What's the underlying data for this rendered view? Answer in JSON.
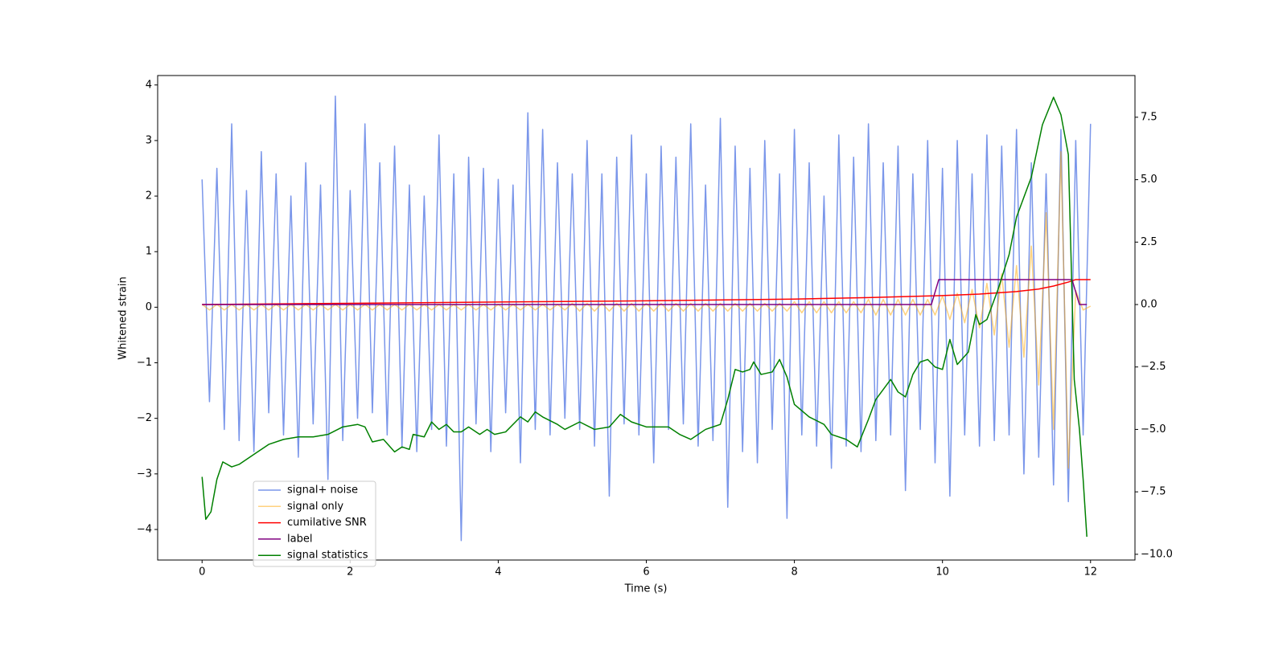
{
  "chart_data": {
    "type": "line",
    "xlabel": "Time (s)",
    "ylabel": "Whitened strain",
    "xlim": [
      -0.6,
      12.6
    ],
    "ylim": [
      -4.55,
      4.17
    ],
    "y2lim": [
      -10.23,
      9.17
    ],
    "xticks": [
      0,
      2,
      4,
      6,
      8,
      10,
      12
    ],
    "yticks": [
      {
        "value": -4,
        "label": "−4"
      },
      {
        "value": -3,
        "label": "−3"
      },
      {
        "value": -2,
        "label": "−2"
      },
      {
        "value": -1,
        "label": "−1"
      },
      0,
      1,
      2,
      3,
      4
    ],
    "y2ticks": [
      {
        "value": -10,
        "label": "−10.0"
      },
      {
        "value": -7.5,
        "label": "−7.5"
      },
      {
        "value": -5,
        "label": "−5.0"
      },
      {
        "value": -2.5,
        "label": "−2.5"
      },
      {
        "value": 0,
        "label": "0.0"
      },
      {
        "value": 2.5,
        "label": "2.5"
      },
      {
        "value": 5,
        "label": "5.0"
      },
      {
        "value": 7.5,
        "label": "7.5"
      }
    ],
    "x": [
      0,
      0.1,
      0.2,
      0.3,
      0.4,
      0.5,
      0.6,
      0.7,
      0.8,
      0.9,
      1,
      1.1,
      1.2,
      1.3,
      1.4,
      1.5,
      1.6,
      1.7,
      1.8,
      1.9,
      2,
      2.1,
      2.2,
      2.3,
      2.4,
      2.5,
      2.6,
      2.7,
      2.8,
      2.9,
      3,
      3.1,
      3.2,
      3.3,
      3.4,
      3.5,
      3.6,
      3.7,
      3.8,
      3.9,
      4,
      4.1,
      4.2,
      4.3,
      4.4,
      4.5,
      4.6,
      4.7,
      4.8,
      4.9,
      5,
      5.1,
      5.2,
      5.3,
      5.4,
      5.5,
      5.6,
      5.7,
      5.8,
      5.9,
      6,
      6.1,
      6.2,
      6.3,
      6.4,
      6.5,
      6.6,
      6.7,
      6.8,
      6.9,
      7,
      7.1,
      7.2,
      7.3,
      7.4,
      7.5,
      7.6,
      7.7,
      7.8,
      7.9,
      8,
      8.1,
      8.2,
      8.3,
      8.4,
      8.5,
      8.6,
      8.7,
      8.8,
      8.9,
      9,
      9.1,
      9.2,
      9.3,
      9.4,
      9.5,
      9.6,
      9.7,
      9.8,
      9.9,
      10,
      10.1,
      10.2,
      10.3,
      10.4,
      10.5,
      10.6,
      10.7,
      10.8,
      10.9,
      11,
      11.1,
      11.2,
      11.3,
      11.4,
      11.5,
      11.6,
      11.7,
      11.8,
      11.9,
      12
    ],
    "series": [
      {
        "name": "signal+ noise",
        "color": "#4169e1",
        "alpha": 0.7,
        "axis": "y",
        "values": [
          2.3,
          -1.7,
          2.5,
          -2.2,
          3.3,
          -2.4,
          2.1,
          -2.6,
          2.8,
          -1.9,
          2.4,
          -2.3,
          2.0,
          -2.7,
          2.6,
          -2.1,
          2.2,
          -3.1,
          3.8,
          -2.4,
          2.1,
          -2.0,
          3.3,
          -1.9,
          2.6,
          -2.3,
          2.9,
          -2.5,
          2.2,
          -2.6,
          2.0,
          -2.2,
          3.1,
          -2.5,
          2.4,
          -4.2,
          2.7,
          -2.1,
          2.5,
          -2.6,
          2.3,
          -1.9,
          2.2,
          -2.8,
          3.5,
          -2.2,
          3.2,
          -2.3,
          2.6,
          -2.0,
          2.4,
          -2.2,
          3.0,
          -2.5,
          2.4,
          -3.4,
          2.7,
          -2.1,
          3.1,
          -2.3,
          2.4,
          -2.8,
          2.9,
          -2.2,
          2.7,
          -2.1,
          3.3,
          -2.5,
          2.2,
          -2.4,
          3.4,
          -3.6,
          2.9,
          -2.6,
          2.5,
          -2.8,
          3.0,
          -2.2,
          2.4,
          -3.8,
          3.2,
          -2.3,
          2.6,
          -2.5,
          2.0,
          -2.9,
          3.1,
          -2.5,
          2.7,
          -2.6,
          3.3,
          -2.4,
          2.6,
          -2.3,
          2.9,
          -3.3,
          2.4,
          -2.2,
          3.0,
          -2.8,
          2.5,
          -3.4,
          3.0,
          -2.3,
          2.4,
          -2.5,
          3.1,
          -2.4,
          2.9,
          -2.3,
          3.2,
          -3.0,
          2.6,
          -2.7,
          2.4,
          -3.2,
          3.2,
          -3.5,
          3.0,
          -2.3,
          3.3
        ]
      },
      {
        "name": "signal only",
        "color": "#ffa500",
        "alpha": 0.5,
        "axis": "y",
        "values": [
          0.05,
          -0.05,
          0.05,
          -0.05,
          0.05,
          -0.05,
          0.05,
          -0.05,
          0.05,
          -0.05,
          0.05,
          -0.05,
          0.05,
          -0.05,
          0.05,
          -0.05,
          0.05,
          -0.05,
          0.05,
          -0.05,
          0.05,
          -0.05,
          0.05,
          -0.05,
          0.05,
          -0.05,
          0.05,
          -0.05,
          0.05,
          -0.05,
          0.05,
          -0.05,
          0.05,
          -0.05,
          0.05,
          -0.05,
          0.05,
          -0.05,
          0.05,
          -0.05,
          0.05,
          -0.05,
          0.05,
          -0.05,
          0.05,
          -0.05,
          0.05,
          -0.05,
          0.05,
          -0.05,
          0.07,
          -0.07,
          0.07,
          -0.07,
          0.07,
          -0.07,
          0.07,
          -0.07,
          0.07,
          -0.07,
          0.07,
          -0.07,
          0.07,
          -0.07,
          0.07,
          -0.07,
          0.07,
          -0.07,
          0.07,
          -0.07,
          0.07,
          -0.07,
          0.07,
          -0.07,
          0.07,
          -0.07,
          0.07,
          -0.07,
          0.07,
          -0.07,
          0.1,
          -0.1,
          0.1,
          -0.1,
          0.1,
          -0.1,
          0.1,
          -0.1,
          0.1,
          -0.1,
          0.14,
          -0.14,
          0.14,
          -0.14,
          0.14,
          -0.14,
          0.14,
          -0.14,
          0.14,
          -0.14,
          0.2,
          -0.22,
          0.25,
          -0.28,
          0.32,
          -0.37,
          0.43,
          -0.5,
          0.6,
          -0.72,
          0.75,
          -0.9,
          1.1,
          -1.4,
          1.7,
          -2.2,
          2.8,
          -2.9,
          0.3,
          -0.05,
          0.02
        ]
      },
      {
        "name": "cumilative SNR",
        "color": "#ff0000",
        "axis": "y2",
        "x": [
          0,
          2,
          4,
          6,
          8,
          9,
          10,
          10.5,
          11,
          11.3,
          11.5,
          11.7,
          11.8,
          12
        ],
        "values": [
          0,
          0.05,
          0.1,
          0.15,
          0.22,
          0.28,
          0.36,
          0.42,
          0.52,
          0.62,
          0.74,
          0.9,
          1,
          1
        ]
      },
      {
        "name": "label",
        "color": "#800080",
        "axis": "y2",
        "x": [
          0,
          9.85,
          9.95,
          11.75,
          11.85,
          11.95
        ],
        "values": [
          0,
          0,
          1,
          1,
          0,
          0
        ]
      },
      {
        "name": "signal statistics",
        "color": "#008000",
        "axis": "y2",
        "x": [
          0,
          0.05,
          0.12,
          0.2,
          0.28,
          0.4,
          0.5,
          0.7,
          0.9,
          1.1,
          1.3,
          1.5,
          1.7,
          1.9,
          2.1,
          2.2,
          2.3,
          2.45,
          2.6,
          2.7,
          2.8,
          2.85,
          3.0,
          3.1,
          3.2,
          3.3,
          3.4,
          3.5,
          3.6,
          3.75,
          3.85,
          3.95,
          4.1,
          4.3,
          4.4,
          4.5,
          4.6,
          4.8,
          4.9,
          5.1,
          5.3,
          5.5,
          5.65,
          5.8,
          6.0,
          6.3,
          6.45,
          6.6,
          6.8,
          7.0,
          7.1,
          7.2,
          7.3,
          7.4,
          7.45,
          7.55,
          7.7,
          7.8,
          7.9,
          8.0,
          8.2,
          8.4,
          8.5,
          8.7,
          8.85,
          9.0,
          9.1,
          9.3,
          9.4,
          9.5,
          9.6,
          9.7,
          9.8,
          9.9,
          10.0,
          10.1,
          10.2,
          10.35,
          10.45,
          10.5,
          10.6,
          10.75,
          10.9,
          11.0,
          11.2,
          11.35,
          11.5,
          11.6,
          11.7,
          11.78,
          11.85,
          11.9,
          11.95
        ],
        "values": [
          -6.9,
          -8.6,
          -8.3,
          -7.0,
          -6.3,
          -6.5,
          -6.4,
          -6.0,
          -5.6,
          -5.4,
          -5.3,
          -5.3,
          -5.2,
          -4.9,
          -4.8,
          -4.9,
          -5.5,
          -5.4,
          -5.9,
          -5.7,
          -5.8,
          -5.2,
          -5.3,
          -4.7,
          -5.0,
          -4.8,
          -5.1,
          -5.1,
          -4.9,
          -5.2,
          -5.0,
          -5.2,
          -5.1,
          -4.5,
          -4.7,
          -4.3,
          -4.5,
          -4.8,
          -5.0,
          -4.7,
          -5.0,
          -4.9,
          -4.4,
          -4.7,
          -4.9,
          -4.9,
          -5.2,
          -5.4,
          -5.0,
          -4.8,
          -3.8,
          -2.6,
          -2.7,
          -2.6,
          -2.3,
          -2.8,
          -2.7,
          -2.2,
          -2.9,
          -4.0,
          -4.5,
          -4.8,
          -5.2,
          -5.4,
          -5.7,
          -4.6,
          -3.8,
          -3.0,
          -3.5,
          -3.7,
          -2.8,
          -2.3,
          -2.2,
          -2.5,
          -2.6,
          -1.4,
          -2.4,
          -1.9,
          -0.4,
          -0.8,
          -0.6,
          0.6,
          2.0,
          3.5,
          5.1,
          7.2,
          8.3,
          7.6,
          6.0,
          -3.0,
          -5.0,
          -7.0,
          -9.3
        ]
      }
    ]
  }
}
